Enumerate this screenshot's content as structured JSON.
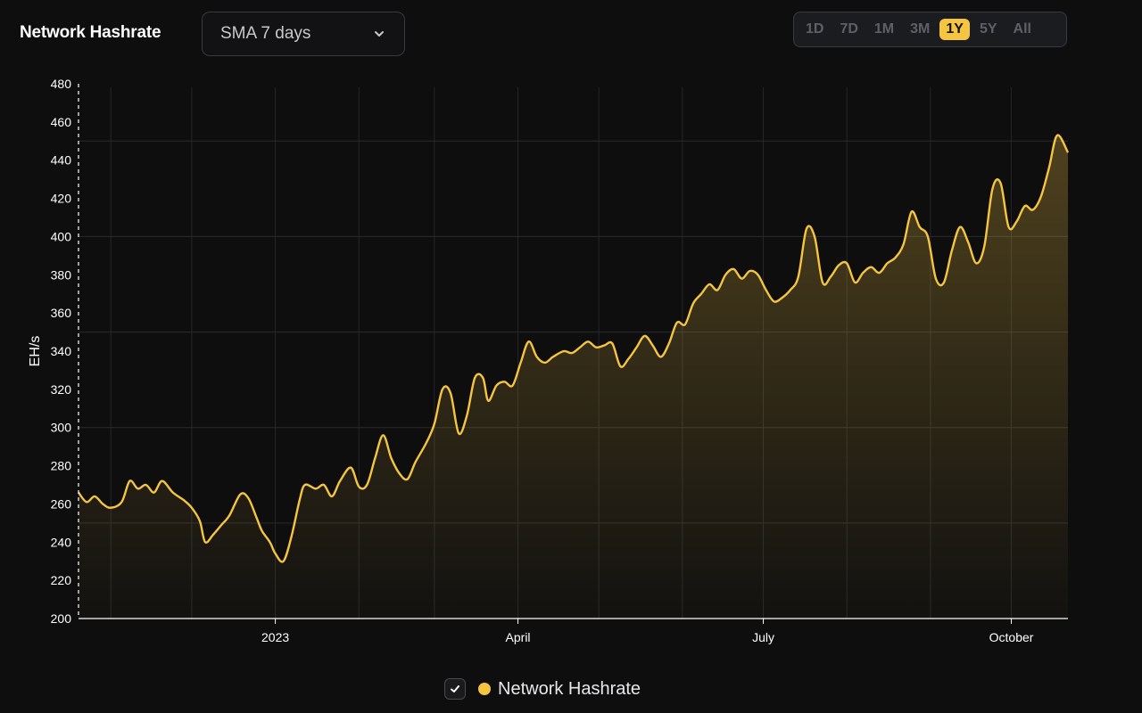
{
  "header": {
    "title": "Network Hashrate",
    "select_value": "SMA 7 days",
    "ranges": [
      "1D",
      "7D",
      "1M",
      "3M",
      "1Y",
      "5Y",
      "All"
    ],
    "active_range": "1Y"
  },
  "legend": {
    "label": "Network Hashrate"
  },
  "colors": {
    "accent": "#f5c542",
    "background": "#0e0e0f"
  },
  "chart_data": {
    "type": "area",
    "ylabel": "EH/s",
    "ylim": [
      200,
      480
    ],
    "yticks": [
      200,
      220,
      240,
      260,
      280,
      300,
      320,
      340,
      360,
      380,
      400,
      420,
      440,
      460,
      480
    ],
    "xlim": [
      "2022-10-20",
      "2023-10-22"
    ],
    "xticks": [
      {
        "label": "2023",
        "date": "2023-01-01"
      },
      {
        "label": "April",
        "date": "2023-04-01"
      },
      {
        "label": "July",
        "date": "2023-07-01"
      },
      {
        "label": "October",
        "date": "2023-10-01"
      }
    ],
    "grid": true,
    "legend_position": "bottom-center",
    "series": [
      {
        "name": "Network Hashrate",
        "points": [
          [
            "2022-10-20",
            266
          ],
          [
            "2022-10-23",
            261
          ],
          [
            "2022-10-26",
            264
          ],
          [
            "2022-10-29",
            260
          ],
          [
            "2022-11-01",
            258
          ],
          [
            "2022-11-05",
            261
          ],
          [
            "2022-11-08",
            272
          ],
          [
            "2022-11-11",
            268
          ],
          [
            "2022-11-14",
            270
          ],
          [
            "2022-11-17",
            266
          ],
          [
            "2022-11-20",
            272
          ],
          [
            "2022-11-24",
            266
          ],
          [
            "2022-11-28",
            262
          ],
          [
            "2022-12-01",
            258
          ],
          [
            "2022-12-04",
            251
          ],
          [
            "2022-12-06",
            240
          ],
          [
            "2022-12-09",
            244
          ],
          [
            "2022-12-12",
            249
          ],
          [
            "2022-12-15",
            254
          ],
          [
            "2022-12-19",
            265
          ],
          [
            "2022-12-22",
            263
          ],
          [
            "2022-12-25",
            253
          ],
          [
            "2022-12-27",
            246
          ],
          [
            "2022-12-30",
            240
          ],
          [
            "2023-01-01",
            234
          ],
          [
            "2023-01-04",
            230
          ],
          [
            "2023-01-07",
            243
          ],
          [
            "2023-01-10",
            262
          ],
          [
            "2023-01-12",
            270
          ],
          [
            "2023-01-16",
            268
          ],
          [
            "2023-01-19",
            270
          ],
          [
            "2023-01-22",
            264
          ],
          [
            "2023-01-25",
            272
          ],
          [
            "2023-01-29",
            279
          ],
          [
            "2023-02-01",
            269
          ],
          [
            "2023-02-04",
            270
          ],
          [
            "2023-02-07",
            284
          ],
          [
            "2023-02-10",
            296
          ],
          [
            "2023-02-13",
            284
          ],
          [
            "2023-02-16",
            276
          ],
          [
            "2023-02-19",
            273
          ],
          [
            "2023-02-22",
            282
          ],
          [
            "2023-02-26",
            292
          ],
          [
            "2023-03-01",
            302
          ],
          [
            "2023-03-04",
            320
          ],
          [
            "2023-03-07",
            318
          ],
          [
            "2023-03-10",
            297
          ],
          [
            "2023-03-13",
            306
          ],
          [
            "2023-03-16",
            326
          ],
          [
            "2023-03-19",
            326
          ],
          [
            "2023-03-21",
            314
          ],
          [
            "2023-03-24",
            322
          ],
          [
            "2023-03-27",
            324
          ],
          [
            "2023-03-30",
            322
          ],
          [
            "2023-04-02",
            334
          ],
          [
            "2023-04-05",
            345
          ],
          [
            "2023-04-08",
            337
          ],
          [
            "2023-04-11",
            334
          ],
          [
            "2023-04-14",
            337
          ],
          [
            "2023-04-18",
            340
          ],
          [
            "2023-04-21",
            339
          ],
          [
            "2023-04-24",
            342
          ],
          [
            "2023-04-27",
            345
          ],
          [
            "2023-04-30",
            342
          ],
          [
            "2023-05-03",
            343
          ],
          [
            "2023-05-06",
            344
          ],
          [
            "2023-05-09",
            332
          ],
          [
            "2023-05-12",
            336
          ],
          [
            "2023-05-15",
            342
          ],
          [
            "2023-05-18",
            348
          ],
          [
            "2023-05-21",
            343
          ],
          [
            "2023-05-24",
            337
          ],
          [
            "2023-05-27",
            344
          ],
          [
            "2023-05-30",
            355
          ],
          [
            "2023-06-02",
            354
          ],
          [
            "2023-06-05",
            365
          ],
          [
            "2023-06-08",
            370
          ],
          [
            "2023-06-11",
            375
          ],
          [
            "2023-06-14",
            372
          ],
          [
            "2023-06-17",
            380
          ],
          [
            "2023-06-20",
            383
          ],
          [
            "2023-06-23",
            378
          ],
          [
            "2023-06-26",
            382
          ],
          [
            "2023-06-29",
            380
          ],
          [
            "2023-07-02",
            372
          ],
          [
            "2023-07-05",
            366
          ],
          [
            "2023-07-08",
            368
          ],
          [
            "2023-07-11",
            372
          ],
          [
            "2023-07-14",
            379
          ],
          [
            "2023-07-17",
            404
          ],
          [
            "2023-07-20",
            400
          ],
          [
            "2023-07-23",
            376
          ],
          [
            "2023-07-26",
            379
          ],
          [
            "2023-07-29",
            385
          ],
          [
            "2023-08-01",
            386
          ],
          [
            "2023-08-04",
            376
          ],
          [
            "2023-08-07",
            381
          ],
          [
            "2023-08-10",
            384
          ],
          [
            "2023-08-13",
            381
          ],
          [
            "2023-08-16",
            386
          ],
          [
            "2023-08-19",
            389
          ],
          [
            "2023-08-22",
            396
          ],
          [
            "2023-08-25",
            413
          ],
          [
            "2023-08-28",
            405
          ],
          [
            "2023-08-31",
            400
          ],
          [
            "2023-09-03",
            378
          ],
          [
            "2023-09-06",
            376
          ],
          [
            "2023-09-09",
            393
          ],
          [
            "2023-09-12",
            405
          ],
          [
            "2023-09-15",
            397
          ],
          [
            "2023-09-18",
            386
          ],
          [
            "2023-09-21",
            395
          ],
          [
            "2023-09-24",
            425
          ],
          [
            "2023-09-27",
            428
          ],
          [
            "2023-09-30",
            405
          ],
          [
            "2023-10-03",
            408
          ],
          [
            "2023-10-06",
            416
          ],
          [
            "2023-10-09",
            414
          ],
          [
            "2023-10-12",
            421
          ],
          [
            "2023-10-15",
            436
          ],
          [
            "2023-10-18",
            453
          ],
          [
            "2023-10-22",
            444
          ]
        ]
      }
    ]
  }
}
